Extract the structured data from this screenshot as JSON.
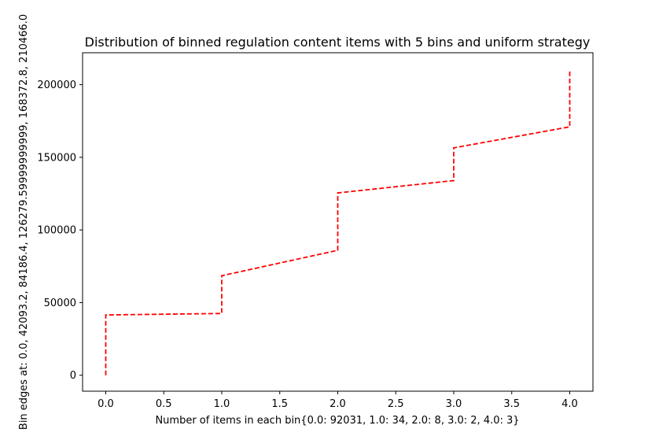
{
  "chart_data": {
    "type": "line",
    "title": "Distribution of binned regulation content items with 5 bins and uniform strategy",
    "xlabel": "Number of items in each bin{0.0: 92031, 1.0: 34, 2.0: 8, 3.0: 2, 4.0: 3}",
    "ylabel": "Bin edges at: 0.0, 42093.2, 84186.4, 126279.59999999999, 168372.8, 210466.0",
    "xlim": [
      -0.2,
      4.2
    ],
    "ylim": [
      -11000,
      222000
    ],
    "x_ticks": [
      "0.0",
      "0.5",
      "1.0",
      "1.5",
      "2.0",
      "2.5",
      "3.0",
      "3.5",
      "4.0"
    ],
    "y_ticks": [
      "0",
      "50000",
      "100000",
      "150000",
      "200000"
    ],
    "grid": false,
    "legend": "none",
    "line_style": "dashed",
    "line_color": "#ff0000",
    "series": [
      {
        "points": [
          [
            0.0,
            0
          ],
          [
            0.0,
            41500
          ],
          [
            1.0,
            42500
          ],
          [
            1.0,
            68500
          ],
          [
            2.0,
            86000
          ],
          [
            2.0,
            125500
          ],
          [
            3.0,
            134000
          ],
          [
            3.0,
            156500
          ],
          [
            4.0,
            171000
          ],
          [
            4.0,
            210466
          ]
        ]
      }
    ]
  }
}
